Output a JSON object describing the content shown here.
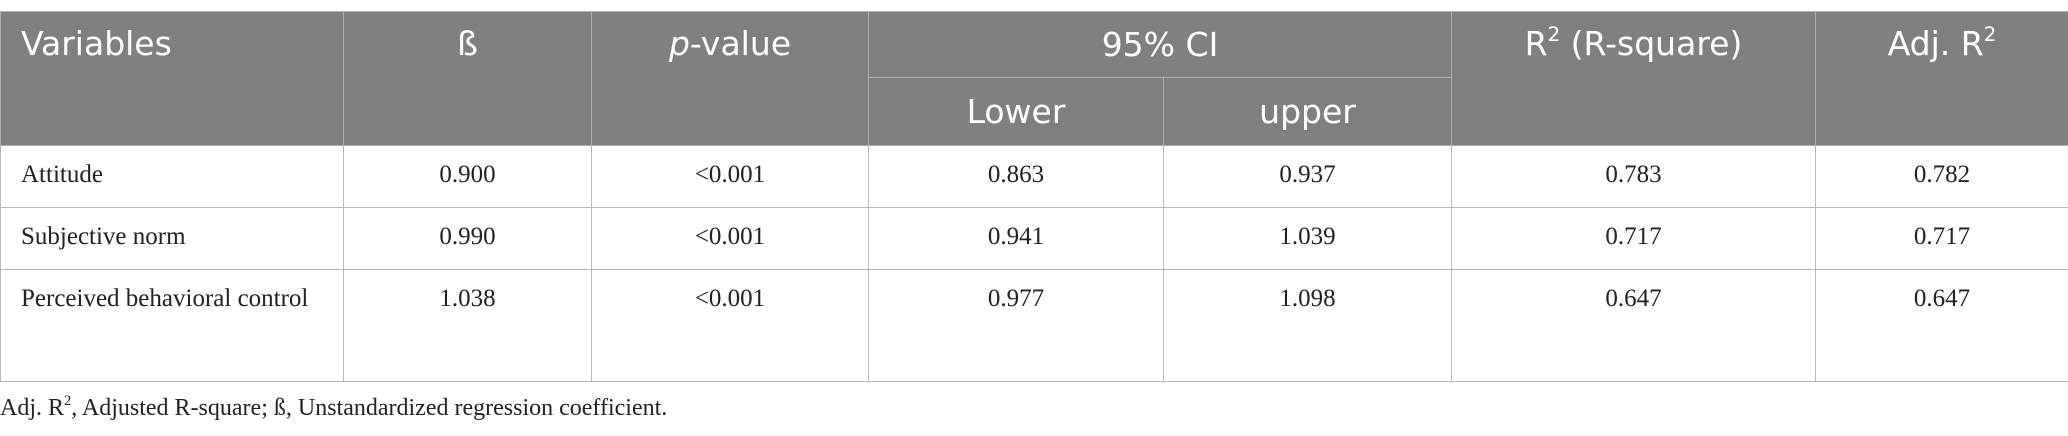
{
  "table": {
    "header": {
      "variables": "Variables",
      "beta": "ß",
      "p_value": {
        "italic": "p",
        "rest": "-value"
      },
      "ci": "95% CI",
      "lower": "Lower",
      "upper": "upper",
      "r2": {
        "base": "R",
        "sup": "2",
        "rest": " (R-square)"
      },
      "adj_r2": {
        "base": "Adj. R",
        "sup": "2"
      }
    },
    "rows": [
      [
        "Attitude",
        "0.900",
        "<0.001",
        "0.863",
        "0.937",
        "0.783",
        "0.782"
      ],
      [
        "Subjective norm",
        "0.990",
        "<0.001",
        "0.941",
        "1.039",
        "0.717",
        "0.717"
      ],
      [
        "Perceived behavioral control",
        "1.038",
        "<0.001",
        "0.977",
        "1.098",
        "0.647",
        "0.647"
      ]
    ]
  },
  "footnote": {
    "base": "Adj. R",
    "sup": "2",
    "rest": ", Adjusted R-square; ß, Unstandardized regression coefficient."
  }
}
